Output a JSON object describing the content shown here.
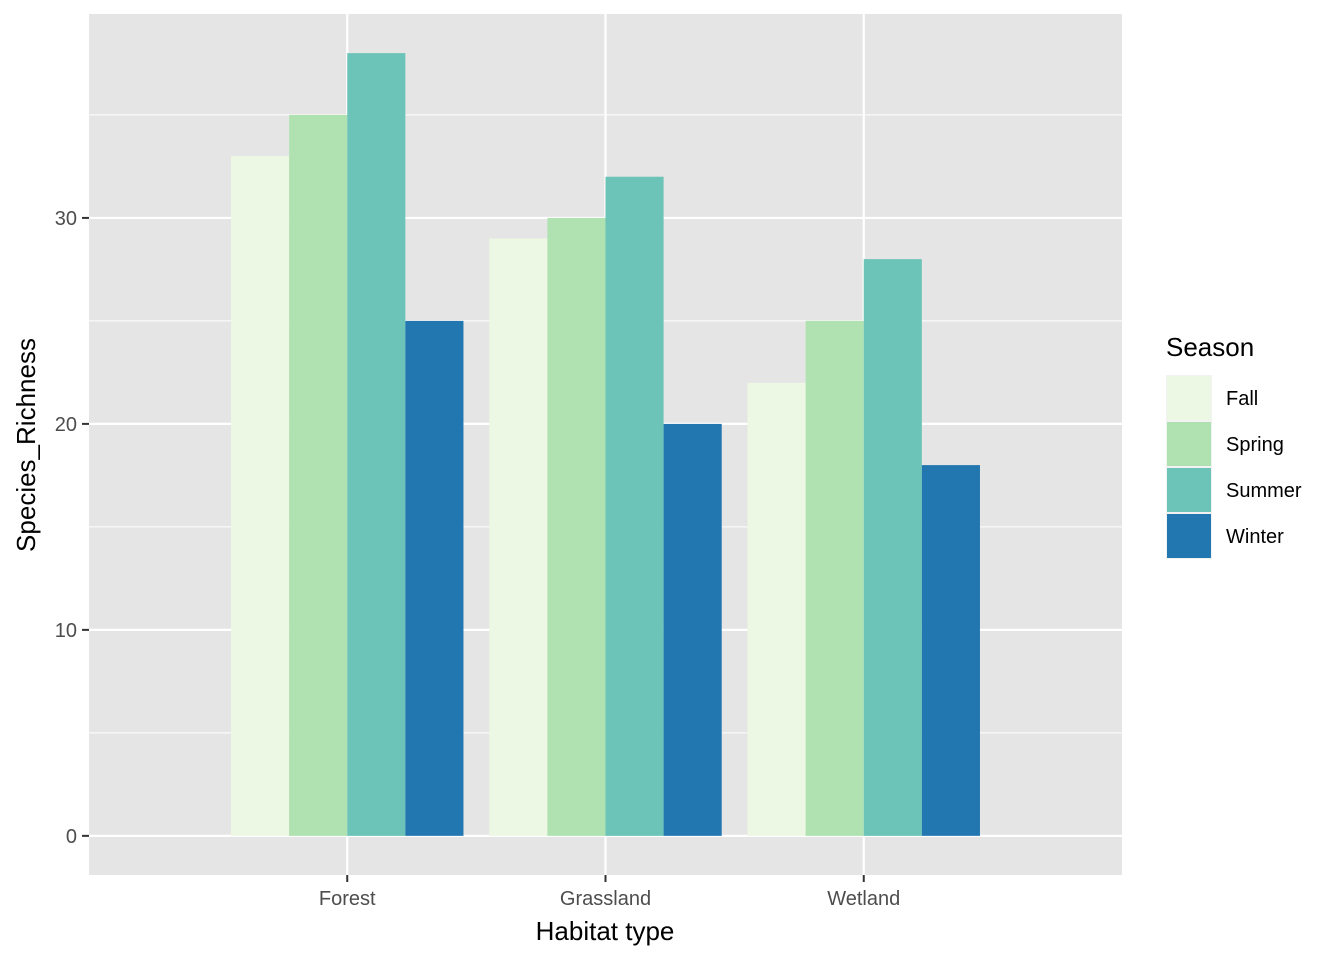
{
  "chart_data": {
    "type": "bar",
    "xlabel": "Habitat type",
    "ylabel": "Species_Richness",
    "categories": [
      "Forest",
      "Grassland",
      "Wetland"
    ],
    "series": [
      {
        "name": "Fall",
        "color": "#edf8e4",
        "values": [
          33,
          29,
          22
        ]
      },
      {
        "name": "Spring",
        "color": "#b0e1b0",
        "values": [
          35,
          30,
          25
        ]
      },
      {
        "name": "Summer",
        "color": "#6cc3b7",
        "values": [
          38,
          32,
          28
        ]
      },
      {
        "name": "Winter",
        "color": "#2377b0",
        "values": [
          25,
          20,
          18
        ]
      }
    ],
    "ylim": [
      -1.9,
      39.9
    ],
    "yticks": [
      0,
      10,
      20,
      30
    ],
    "ytick_labels": [
      "0",
      "10",
      "20",
      "30"
    ],
    "legend": {
      "title": "Season",
      "position": "right"
    },
    "grid": true,
    "panel_background": "#e5e5e5"
  }
}
